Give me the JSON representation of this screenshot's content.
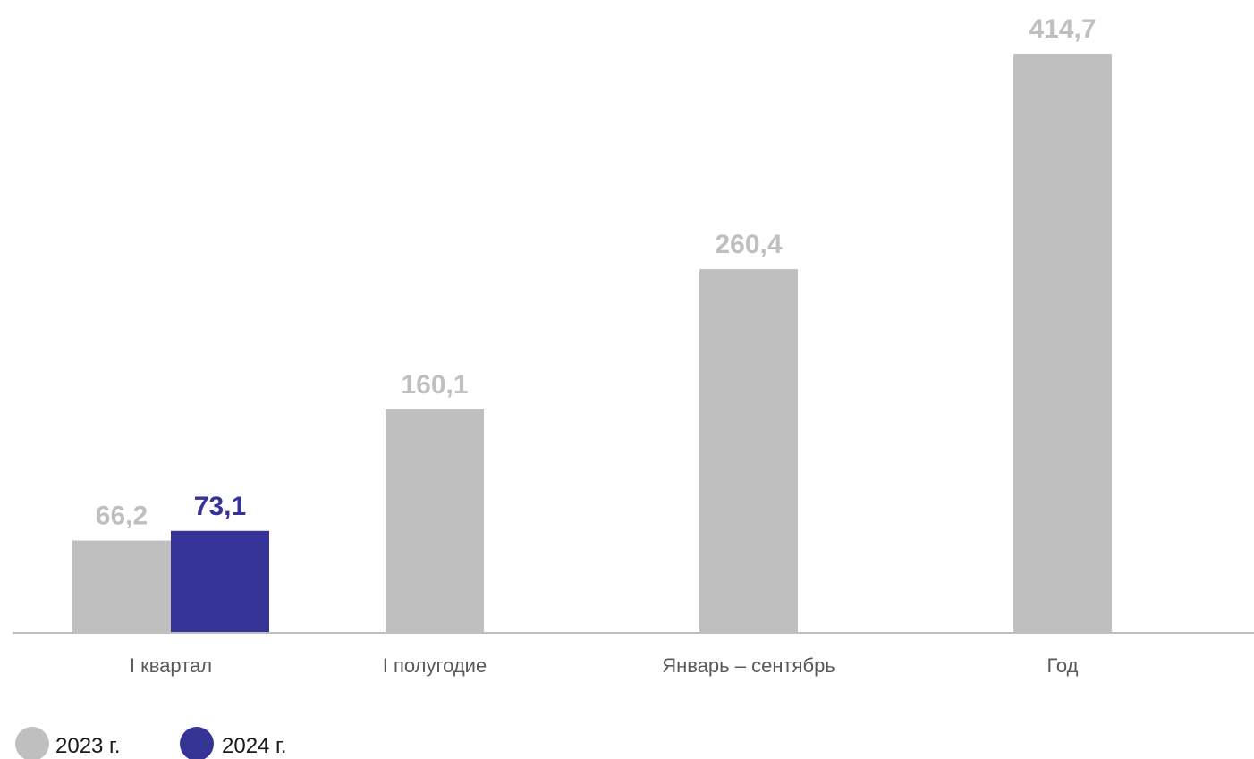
{
  "chart_data": {
    "type": "bar",
    "categories": [
      "I квартал",
      "I полугодие",
      "Январь – сентябрь",
      "Год"
    ],
    "series": [
      {
        "name": "2023 г.",
        "color": "#bfbfbf",
        "values": [
          66.2,
          160.1,
          260.4,
          414.7
        ],
        "labels": [
          "66,2",
          "160,1",
          "260,4",
          "414,7"
        ]
      },
      {
        "name": "2024 г.",
        "color": "#363396",
        "values": [
          73.1,
          null,
          null,
          null
        ],
        "labels": [
          "73,1",
          null,
          null,
          null
        ]
      }
    ],
    "ylim": [
      0,
      414.7
    ],
    "grid": false,
    "legend": "bottom-left",
    "axis_color": "#bfbfbf"
  }
}
